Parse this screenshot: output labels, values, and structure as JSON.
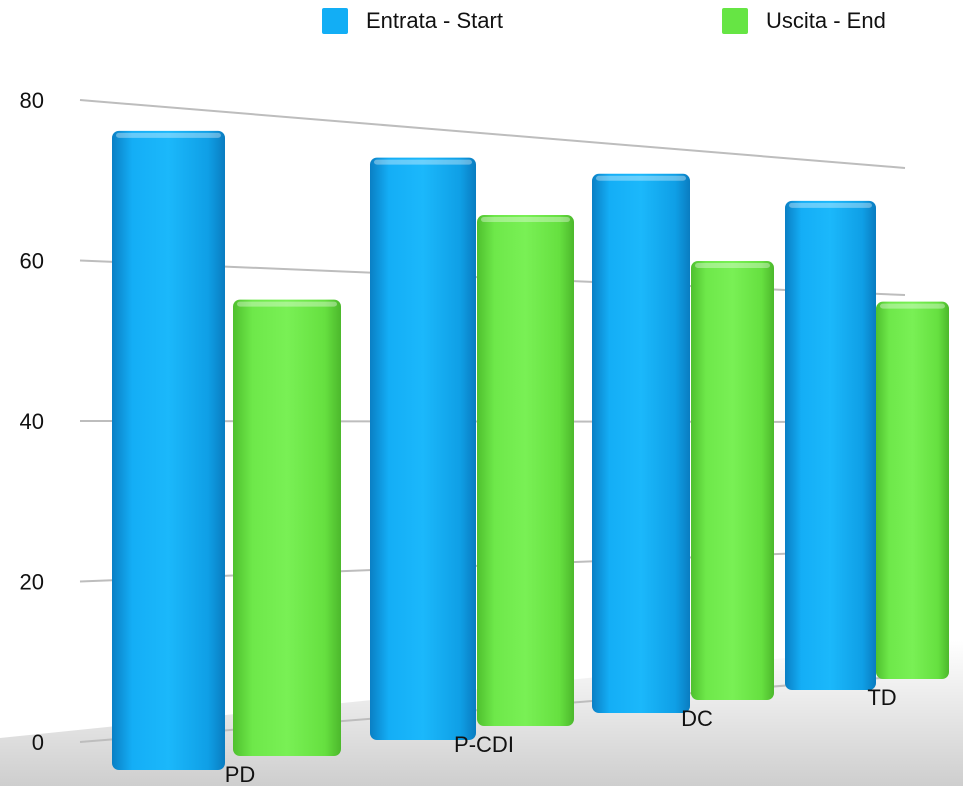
{
  "chart_data": {
    "type": "bar",
    "title": "",
    "xlabel": "",
    "ylabel": "",
    "categories": [
      "PD",
      "P-CDI",
      "DC",
      "TD"
    ],
    "series": [
      {
        "name": "Entrata - Start",
        "color": "#12AEF5",
        "values": [
          77,
          76,
          76,
          74
        ]
      },
      {
        "name": "Uscita - End",
        "color": "#66E544",
        "values": [
          56,
          69,
          64,
          59
        ]
      }
    ],
    "ylim": [
      0,
      80
    ],
    "yticks": [
      "0",
      "20",
      "40",
      "60",
      "80"
    ],
    "grid": true,
    "legend": "top-center",
    "style": "3d-perspective"
  }
}
